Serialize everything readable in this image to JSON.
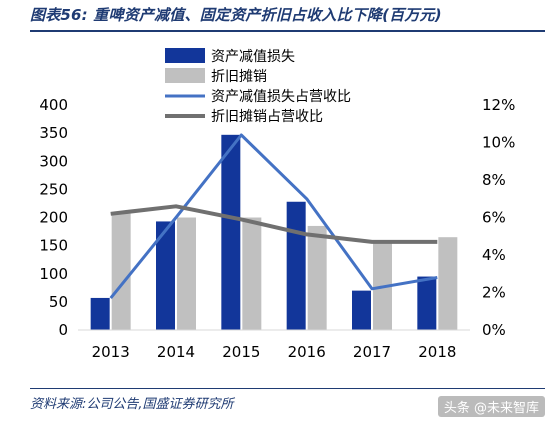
{
  "title": "图表56:  重啤资产减值、固定资产折旧占收入比下降(百万元)",
  "source": "资料来源:公司公告,国盛证券研究所",
  "watermark": "头条 @未来智库",
  "colors": {
    "impairment_bar": "#12369a",
    "depreciation_bar": "#c0c0c0",
    "impairment_ratio_line": "#4472c4",
    "depreciation_ratio_line": "#707070"
  },
  "chart_data": {
    "type": "bar",
    "categories": [
      "2013",
      "2014",
      "2015",
      "2016",
      "2017",
      "2018"
    ],
    "series": [
      {
        "name": "资产减值损失",
        "type": "bar",
        "axis": "left",
        "values": [
          57,
          193,
          347,
          228,
          70,
          95
        ]
      },
      {
        "name": "折旧摊销",
        "type": "bar",
        "axis": "left",
        "values": [
          207,
          200,
          200,
          185,
          155,
          165
        ]
      },
      {
        "name": "资产减值损失占营收比",
        "type": "line",
        "axis": "right",
        "values": [
          0.017,
          0.06,
          0.104,
          0.07,
          0.022,
          0.028
        ]
      },
      {
        "name": "折旧摊销占营收比",
        "type": "line",
        "axis": "right",
        "values": [
          0.062,
          0.066,
          0.059,
          0.051,
          0.047,
          0.047
        ]
      }
    ],
    "ylim": [
      0,
      400
    ],
    "yticks": [
      "0",
      "50",
      "100",
      "150",
      "200",
      "250",
      "300",
      "350",
      "400"
    ],
    "y2lim": [
      0,
      0.12
    ],
    "y2ticks": [
      "0%",
      "2%",
      "4%",
      "6%",
      "8%",
      "10%",
      "12%"
    ],
    "legend_position": "top-center",
    "grid": false
  }
}
